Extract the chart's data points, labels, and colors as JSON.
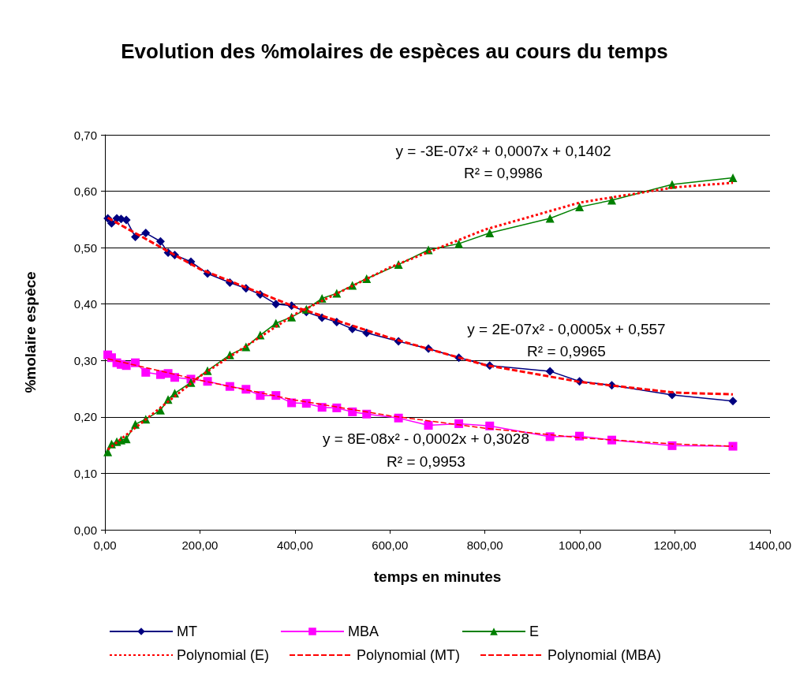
{
  "chart_data": {
    "type": "line",
    "title": "Evolution des %molaires de espèces au cours du temps",
    "xlabel": "temps en minutes",
    "ylabel": "%molaire espèce",
    "x": [
      6,
      14,
      25,
      34,
      45,
      64,
      86,
      117,
      133,
      147,
      181,
      216,
      263,
      297,
      327,
      360,
      393,
      424,
      457,
      488,
      521,
      551,
      618,
      681,
      745,
      810,
      937,
      999,
      1067,
      1194,
      1322
    ],
    "series": [
      {
        "name": "MT",
        "color": "#000080",
        "marker": "diamond",
        "line_style": "solid",
        "values": [
          0.552,
          0.543,
          0.552,
          0.551,
          0.549,
          0.519,
          0.526,
          0.511,
          0.491,
          0.487,
          0.475,
          0.454,
          0.438,
          0.428,
          0.417,
          0.4,
          0.397,
          0.386,
          0.376,
          0.368,
          0.356,
          0.349,
          0.334,
          0.321,
          0.305,
          0.291,
          0.281,
          0.263,
          0.256,
          0.239,
          0.228
        ]
      },
      {
        "name": "MBA",
        "color": "#ff00ff",
        "marker": "square",
        "line_style": "solid",
        "values": [
          0.31,
          0.305,
          0.296,
          0.293,
          0.291,
          0.296,
          0.279,
          0.275,
          0.277,
          0.27,
          0.267,
          0.263,
          0.254,
          0.249,
          0.238,
          0.238,
          0.225,
          0.224,
          0.217,
          0.216,
          0.209,
          0.205,
          0.198,
          0.185,
          0.188,
          0.184,
          0.165,
          0.166,
          0.159,
          0.149,
          0.148
        ]
      },
      {
        "name": "E",
        "color": "#008000",
        "marker": "triangle",
        "line_style": "solid",
        "values": [
          0.138,
          0.152,
          0.156,
          0.159,
          0.161,
          0.187,
          0.196,
          0.212,
          0.231,
          0.242,
          0.261,
          0.282,
          0.31,
          0.324,
          0.345,
          0.366,
          0.377,
          0.391,
          0.41,
          0.419,
          0.433,
          0.445,
          0.47,
          0.496,
          0.507,
          0.526,
          0.552,
          0.572,
          0.584,
          0.612,
          0.624
        ]
      },
      {
        "name": "Polynomial (E)",
        "color": "#ff0000",
        "marker": "none",
        "line_style": "dotted",
        "x": [
          6,
          200,
          400,
          600,
          800,
          1000,
          1200,
          1322
        ],
        "values": [
          0.142,
          0.272,
          0.382,
          0.465,
          0.532,
          0.58,
          0.607,
          0.615
        ]
      },
      {
        "name": "Polynomial (MT)",
        "color": "#ff0000",
        "marker": "none",
        "line_style": "dashed",
        "x": [
          6,
          200,
          400,
          600,
          800,
          1000,
          1200,
          1322
        ],
        "values": [
          0.553,
          0.462,
          0.395,
          0.34,
          0.292,
          0.262,
          0.243,
          0.24
        ]
      },
      {
        "name": "Polynomial (MBA)",
        "color": "#ff0000",
        "marker": "none",
        "line_style": "dashed",
        "x": [
          6,
          200,
          400,
          600,
          800,
          1000,
          1200,
          1322
        ],
        "values": [
          0.303,
          0.265,
          0.23,
          0.202,
          0.18,
          0.163,
          0.152,
          0.148
        ]
      }
    ],
    "xlim": [
      0,
      1400
    ],
    "xticks": [
      {
        "value": 0,
        "label": "0,00"
      },
      {
        "value": 200,
        "label": "200,00"
      },
      {
        "value": 400,
        "label": "400,00"
      },
      {
        "value": 600,
        "label": "600,00"
      },
      {
        "value": 800,
        "label": "800,00"
      },
      {
        "value": 1000,
        "label": "1000,00"
      },
      {
        "value": 1200,
        "label": "1200,00"
      },
      {
        "value": 1400,
        "label": "1400,00"
      }
    ],
    "ylim": [
      0,
      0.7
    ],
    "yticks": [
      {
        "value": 0,
        "label": "0,00"
      },
      {
        "value": 0.1,
        "label": "0,10"
      },
      {
        "value": 0.2,
        "label": "0,20"
      },
      {
        "value": 0.3,
        "label": "0,30"
      },
      {
        "value": 0.4,
        "label": "0,40"
      },
      {
        "value": 0.5,
        "label": "0,50"
      },
      {
        "value": 0.6,
        "label": "0,60"
      },
      {
        "value": 0.7,
        "label": "0,70"
      }
    ],
    "grid": "y",
    "legend": "bottom",
    "annotations": [
      "y = -3E-07x² + 0,0007x + 0,1402",
      "R² = 0,9986",
      "y = 2E-07x² - 0,0005x + 0,557",
      "R² = 0,9965",
      "y = 8E-08x² - 0,0002x + 0,3028",
      "R² = 0,9953"
    ]
  }
}
